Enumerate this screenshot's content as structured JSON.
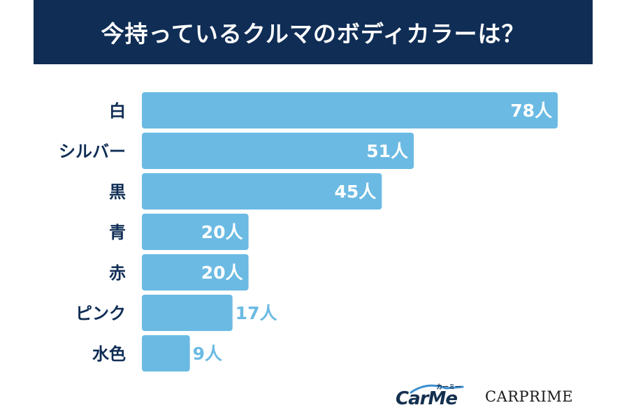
{
  "header": {
    "title": "今持っているクルマのボディカラーは？"
  },
  "chart_data": {
    "type": "bar",
    "orientation": "horizontal",
    "title": "今持っているクルマのボディカラーは？",
    "categories": [
      "白",
      "シルバー",
      "黒",
      "青",
      "赤",
      "ピンク",
      "水色"
    ],
    "values": [
      78,
      51,
      45,
      20,
      20,
      17,
      9
    ],
    "value_labels": [
      "78人",
      "51人",
      "45人",
      "20人",
      "20人",
      "17人",
      "9人"
    ],
    "unit": "人",
    "xlim": [
      0,
      78
    ],
    "grid": false,
    "legend": "none",
    "colors": {
      "bar": "#6bbae3",
      "label_dark": "#0f2d55",
      "label_inside": "#ffffff",
      "label_outside": "#6bbae3"
    }
  },
  "logos": {
    "carme": "CarMe",
    "carme_kana": "カーミー",
    "carprime": "CARPRIME"
  }
}
